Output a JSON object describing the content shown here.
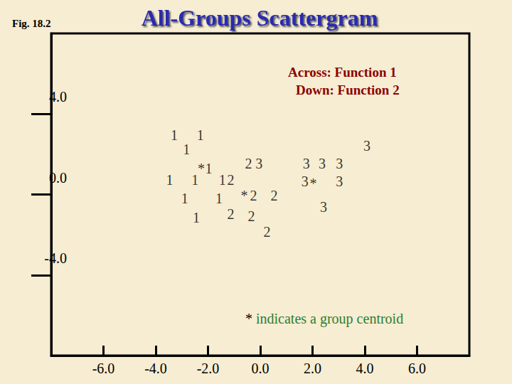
{
  "chart_data": {
    "type": "scatter",
    "title": "All-Groups Scattergram",
    "figure_label": "Fig. 18.2",
    "annotations": [
      "Across: Function 1",
      "Down: Function 2"
    ],
    "note": "* indicates a group centroid",
    "centroid_symbol": "*",
    "xlim": [
      -8,
      8
    ],
    "xticks": [
      {
        "value": -6,
        "label": "-6.0"
      },
      {
        "value": -4,
        "label": "-4.0"
      },
      {
        "value": -2,
        "label": "-2.0"
      },
      {
        "value": 0,
        "label": "0.0"
      },
      {
        "value": 2,
        "label": "2.0"
      },
      {
        "value": 4,
        "label": "4.0"
      },
      {
        "value": 6,
        "label": "6.0"
      }
    ],
    "ylim": [
      -8,
      8
    ],
    "yticks": [
      {
        "value": -4,
        "label": "-4.0"
      },
      {
        "value": 0,
        "label": "0.0"
      },
      {
        "value": 4,
        "label": "4.0"
      }
    ],
    "grid": false,
    "series": [
      {
        "name": "1",
        "color": "#000000",
        "centroid": [
          -2.26,
          1.29
        ],
        "x": [
          -3.29,
          -2.29,
          -2.82,
          -1.97,
          -3.47,
          -2.5,
          -1.45,
          -2.89,
          -1.58,
          -2.45
        ],
        "y": [
          2.96,
          2.96,
          2.25,
          1.29,
          0.71,
          0.71,
          0.71,
          -0.18,
          -0.18,
          -1.14
        ]
      },
      {
        "name": "2",
        "color": "#000000",
        "centroid": [
          -0.61,
          -0.07
        ],
        "x": [
          -1.13,
          -0.45,
          -0.26,
          0.53,
          -1.13,
          -0.34,
          0.26
        ],
        "y": [
          0.71,
          1.54,
          -0.07,
          -0.07,
          -0.96,
          -1.07,
          -1.86
        ]
      },
      {
        "name": "3",
        "color": "#000000",
        "centroid": [
          2.03,
          0.54
        ],
        "x": [
          -0.05,
          1.76,
          2.37,
          3.03,
          4.08,
          1.71,
          3.03,
          2.42
        ],
        "y": [
          1.54,
          1.54,
          1.54,
          1.54,
          2.43,
          0.64,
          0.64,
          -0.61
        ]
      }
    ]
  }
}
